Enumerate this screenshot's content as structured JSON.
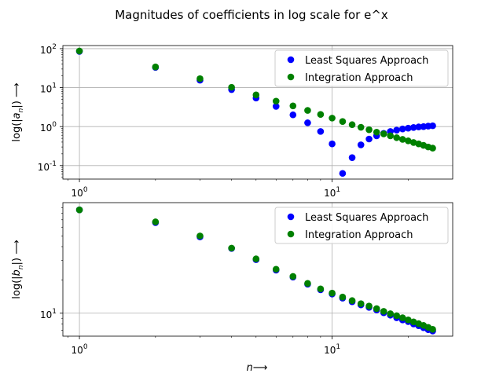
{
  "figure": {
    "title": "Magnitudes of coefficients in log scale for e^x",
    "xlabel": "n⟶"
  },
  "series_styles": [
    {
      "name": "Least Squares Approach",
      "color": "#0000ff"
    },
    {
      "name": "Integration Approach",
      "color": "#008000"
    }
  ],
  "chart_data": [
    {
      "type": "scatter",
      "xscale": "log",
      "yscale": "log",
      "xlim": [
        0.86,
        30
      ],
      "ylim": [
        0.045,
        120
      ],
      "ylabel": "log(|a_n|) ⟶",
      "grid": true,
      "legend": "top-right",
      "xticks": [
        {
          "v": 1,
          "label": "10^0"
        },
        {
          "v": 10,
          "label": "10^1"
        }
      ],
      "yticks": [
        {
          "v": 0.1,
          "label": "10^-1"
        },
        {
          "v": 1,
          "label": "10^0"
        },
        {
          "v": 10,
          "label": "10^1"
        },
        {
          "v": 100,
          "label": "10^2"
        }
      ],
      "x": [
        1,
        2,
        3,
        4,
        5,
        6,
        7,
        8,
        9,
        10,
        11,
        12,
        13,
        14,
        15,
        16,
        17,
        18,
        19,
        20,
        21,
        22,
        23,
        24,
        25
      ],
      "series": [
        {
          "name": "Least Squares Approach",
          "values": [
            85,
            33,
            15.5,
            8.9,
            5.4,
            3.3,
            2.0,
            1.25,
            0.75,
            0.36,
            0.063,
            0.16,
            0.34,
            0.48,
            0.58,
            0.67,
            0.75,
            0.81,
            0.87,
            0.91,
            0.95,
            0.98,
            1.0,
            1.03,
            1.05
          ]
        },
        {
          "name": "Integration Approach",
          "values": [
            87,
            34,
            17,
            10.2,
            6.5,
            4.5,
            3.4,
            2.6,
            2.05,
            1.65,
            1.35,
            1.12,
            0.96,
            0.83,
            0.72,
            0.65,
            0.58,
            0.52,
            0.47,
            0.43,
            0.39,
            0.36,
            0.33,
            0.3,
            0.28
          ]
        }
      ]
    },
    {
      "type": "scatter",
      "xscale": "log",
      "yscale": "log",
      "xlim": [
        0.86,
        30
      ],
      "ylim": [
        6.2,
        100
      ],
      "ylabel": "log(|b_n|) ⟶",
      "grid": true,
      "legend": "top-right",
      "xticks": [
        {
          "v": 1,
          "label": "10^0"
        },
        {
          "v": 10,
          "label": "10^1"
        }
      ],
      "yticks": [
        {
          "v": 10,
          "label": "10^1"
        }
      ],
      "x": [
        1,
        2,
        3,
        4,
        5,
        6,
        7,
        8,
        9,
        10,
        11,
        12,
        13,
        14,
        15,
        16,
        17,
        18,
        19,
        20,
        21,
        22,
        23,
        24,
        25
      ],
      "series": [
        {
          "name": "Least Squares Approach",
          "values": [
            86,
            66,
            49,
            38.5,
            30.5,
            24.5,
            21.2,
            18.3,
            16.3,
            14.9,
            13.7,
            12.7,
            11.9,
            11.3,
            10.7,
            10.1,
            9.6,
            9.1,
            8.7,
            8.4,
            8.0,
            7.7,
            7.4,
            7.1,
            6.9
          ]
        },
        {
          "name": "Integration Approach",
          "values": [
            86,
            67,
            50,
            38.8,
            31,
            25,
            21.5,
            18.6,
            16.6,
            15.2,
            14.0,
            13.0,
            12.2,
            11.6,
            11.0,
            10.4,
            9.9,
            9.5,
            9.1,
            8.7,
            8.35,
            8.05,
            7.75,
            7.45,
            7.15
          ]
        }
      ]
    }
  ]
}
